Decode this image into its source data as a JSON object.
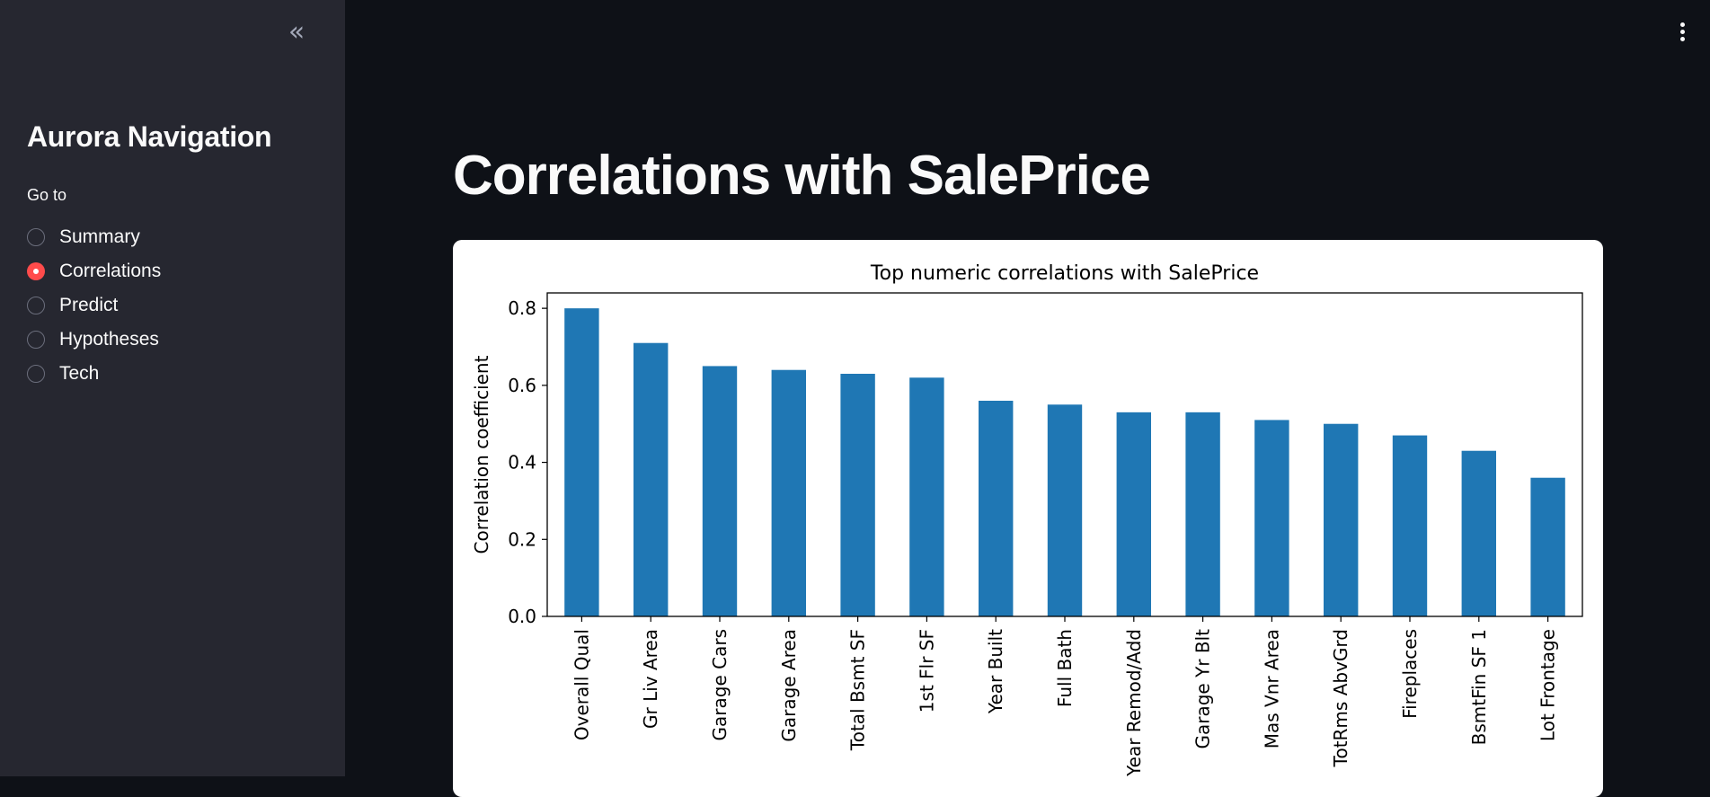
{
  "sidebar": {
    "collapse_icon": "double-chevron-left-icon",
    "title": "Aurora Navigation",
    "radio_label": "Go to",
    "options": [
      {
        "label": "Summary",
        "selected": false
      },
      {
        "label": "Correlations",
        "selected": true
      },
      {
        "label": "Predict",
        "selected": false
      },
      {
        "label": "Hypotheses",
        "selected": false
      },
      {
        "label": "Tech",
        "selected": false
      }
    ]
  },
  "header": {
    "menu_icon": "kebab-menu-icon"
  },
  "main": {
    "title": "Correlations with SalePrice"
  },
  "colors": {
    "accent": "#ff4b4b",
    "bar": "#1f77b4",
    "sidebar_bg": "#262730",
    "main_bg": "#0e1117"
  },
  "chart_data": {
    "type": "bar",
    "title": "Top numeric correlations with SalePrice",
    "xlabel": "",
    "ylabel": "Correlation coefficient",
    "categories": [
      "Overall Qual",
      "Gr Liv Area",
      "Garage Cars",
      "Garage Area",
      "Total Bsmt SF",
      "1st Flr SF",
      "Year Built",
      "Full Bath",
      "Year Remod/Add",
      "Garage Yr Blt",
      "Mas Vnr Area",
      "TotRms AbvGrd",
      "Fireplaces",
      "BsmtFin SF 1",
      "Lot Frontage"
    ],
    "values": [
      0.8,
      0.71,
      0.65,
      0.64,
      0.63,
      0.62,
      0.56,
      0.55,
      0.53,
      0.53,
      0.51,
      0.5,
      0.47,
      0.43,
      0.36
    ],
    "ylim": [
      0,
      0.84
    ],
    "yticks": [
      "0.0",
      "0.2",
      "0.4",
      "0.6",
      "0.8"
    ],
    "grid": false,
    "legend": "none"
  }
}
